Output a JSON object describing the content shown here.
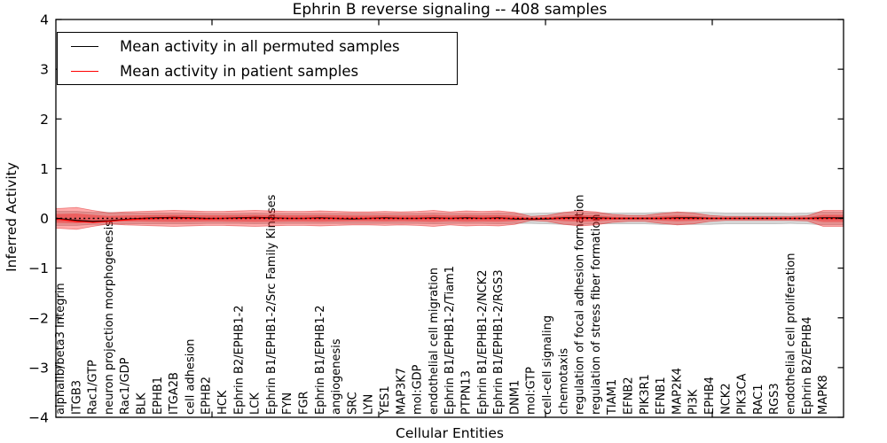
{
  "figure": {
    "title": "Ephrin B reverse signaling -- 408 samples",
    "xlabel": "Cellular Entities",
    "ylabel": "Inferred Activity"
  },
  "legend": {
    "items": [
      {
        "label": "Mean activity in all permuted samples",
        "color": "#000000"
      },
      {
        "label": "Mean activity in patient samples",
        "color": "#ff0000"
      }
    ]
  },
  "axes": {
    "ytick_labels": [
      "4",
      "3",
      "2",
      "1",
      "0",
      "−1",
      "−2",
      "−3",
      "−4"
    ],
    "ytick_values": [
      4,
      3,
      2,
      1,
      0,
      -1,
      -2,
      -3,
      -4
    ]
  },
  "chart_data": {
    "type": "area",
    "title": "Ephrin B reverse signaling -- 408 samples",
    "xlabel": "Cellular Entities",
    "ylabel": "Inferred Activity",
    "ylim": [
      -4,
      4
    ],
    "grid": false,
    "legend_position": "upper-left",
    "zero_line_style": "dotted",
    "categories": [
      "alphaIIb/beta3 Integrin",
      "ITGB3",
      "Rac1/GTP",
      "neuron projection morphogenesis",
      "Rac1/GDP",
      "BLK",
      "EPHB1",
      "ITGA2B",
      "cell adhesion",
      "EPHB2",
      "HCK",
      "Ephrin B2/EPHB1-2",
      "LCK",
      "Ephrin B1/EPHB1-2/Src Family Kinases",
      "FYN",
      "FGR",
      "Ephrin B1/EPHB1-2",
      "angiogenesis",
      "SRC",
      "LYN",
      "YES1",
      "MAP3K7",
      "mol:GDP",
      "endothelial cell migration",
      "Ephrin B1/EPHB1-2/Tiam1",
      "PTPN13",
      "Ephrin B1/EPHB1-2/NCK2",
      "Ephrin B1/EPHB1-2/RGS3",
      "DNM1",
      "mol:GTP",
      "cell-cell signaling",
      "chemotaxis",
      "regulation of focal adhesion formation",
      "regulation of stress fiber formation",
      "TIAM1",
      "EFNB2",
      "PIK3R1",
      "EFNB1",
      "MAP2K4",
      "PI3K",
      "EPHB4",
      "NCK2",
      "PIK3CA",
      "RAC1",
      "RGS3",
      "endothelial cell proliferation",
      "Ephrin B2/EPHB4",
      "MAPK8"
    ],
    "series": [
      {
        "name": "Mean activity in all permuted samples",
        "color": "#000000",
        "values": [
          -0.01,
          -0.04,
          -0.06,
          -0.05,
          -0.02,
          0.0,
          0.01,
          0.02,
          0.01,
          0.0,
          0.0,
          0.01,
          0.02,
          0.01,
          0.0,
          0.0,
          0.01,
          0.0,
          -0.01,
          0.0,
          0.01,
          0.0,
          0.0,
          0.01,
          0.0,
          0.01,
          0.0,
          0.01,
          -0.01,
          -0.02,
          -0.01,
          0.01,
          0.02,
          0.01,
          0.0,
          0.0,
          0.0,
          0.0,
          0.01,
          0.01,
          0.0,
          0.0,
          0.0,
          0.0,
          0.0,
          0.0,
          0.0,
          0.01
        ]
      },
      {
        "name": "Mean activity in patient samples",
        "color": "#ff0000",
        "values": [
          -0.02,
          -0.06,
          -0.08,
          -0.06,
          -0.03,
          -0.01,
          0.0,
          0.01,
          0.0,
          -0.01,
          0.0,
          0.0,
          0.01,
          0.0,
          0.0,
          0.0,
          0.0,
          0.0,
          0.0,
          0.0,
          0.0,
          0.0,
          0.0,
          0.0,
          0.0,
          0.0,
          0.0,
          0.0,
          0.0,
          -0.01,
          0.0,
          0.0,
          0.01,
          0.0,
          0.0,
          0.0,
          0.0,
          0.0,
          0.0,
          0.0,
          0.0,
          0.0,
          0.0,
          0.0,
          0.0,
          0.0,
          0.0,
          0.0
        ]
      }
    ],
    "bands": [
      {
        "name": "permuted samples spread",
        "fill": "rgba(120,120,120,0.30)",
        "edge": "rgba(80,80,80,0.35)",
        "half_widths": [
          0.14,
          0.14,
          0.12,
          0.12,
          0.11,
          0.11,
          0.11,
          0.11,
          0.11,
          0.1,
          0.1,
          0.1,
          0.11,
          0.1,
          0.1,
          0.1,
          0.1,
          0.1,
          0.1,
          0.1,
          0.1,
          0.1,
          0.1,
          0.11,
          0.1,
          0.1,
          0.1,
          0.11,
          0.1,
          0.1,
          0.11,
          0.12,
          0.12,
          0.11,
          0.11,
          0.11,
          0.11,
          0.12,
          0.12,
          0.12,
          0.12,
          0.11,
          0.11,
          0.11,
          0.11,
          0.1,
          0.11,
          0.13
        ]
      },
      {
        "name": "patient samples spread",
        "fill": "rgba(255,0,0,0.33)",
        "edge": "rgba(220,40,40,0.55)",
        "half_widths": [
          0.2,
          0.22,
          0.16,
          0.11,
          0.13,
          0.14,
          0.15,
          0.16,
          0.15,
          0.14,
          0.14,
          0.15,
          0.16,
          0.15,
          0.14,
          0.14,
          0.15,
          0.14,
          0.13,
          0.13,
          0.14,
          0.13,
          0.14,
          0.16,
          0.13,
          0.15,
          0.14,
          0.15,
          0.12,
          0.04,
          0.06,
          0.12,
          0.15,
          0.13,
          0.08,
          0.06,
          0.06,
          0.1,
          0.13,
          0.11,
          0.06,
          0.04,
          0.04,
          0.04,
          0.04,
          0.04,
          0.05,
          0.16
        ]
      }
    ]
  }
}
